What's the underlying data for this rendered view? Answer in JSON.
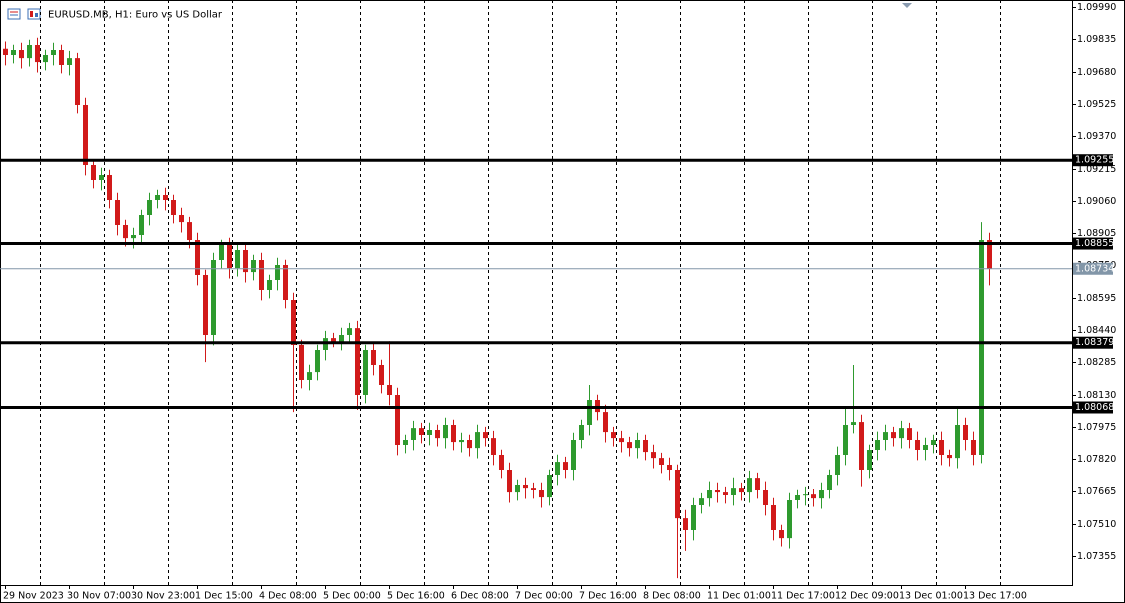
{
  "chart_data": {
    "type": "candlestick",
    "title": "EURUSD.MB, H1:  Euro vs US Dollar",
    "categories": [
      "29 Nov 2023",
      null,
      null,
      null,
      null,
      null,
      null,
      null,
      "30 Nov 07:00",
      null,
      null,
      null,
      null,
      null,
      null,
      null,
      "30 Nov 23:00",
      null,
      null,
      null,
      null,
      null,
      null,
      null,
      "1 Dec 15:00",
      null,
      null,
      null,
      null,
      null,
      null,
      null,
      "4 Dec 08:00",
      null,
      null,
      null,
      null,
      null,
      null,
      null,
      "5 Dec 00:00",
      null,
      null,
      null,
      null,
      null,
      null,
      null,
      "5 Dec 16:00",
      null,
      null,
      null,
      null,
      null,
      null,
      null,
      "6 Dec 08:00",
      null,
      null,
      null,
      null,
      null,
      null,
      null,
      "7 Dec 00:00",
      null,
      null,
      null,
      null,
      null,
      null,
      null,
      "7 Dec 16:00",
      null,
      null,
      null,
      null,
      null,
      null,
      null,
      "8 Dec 08:00",
      null,
      null,
      null,
      null,
      null,
      null,
      null,
      "11 Dec 01:00",
      null,
      null,
      null,
      null,
      null,
      null,
      null,
      "11 Dec 17:00",
      null,
      null,
      null,
      null,
      null,
      null,
      null,
      "12 Dec 09:00",
      null,
      null,
      null,
      null,
      null,
      null,
      null,
      "13 Dec 01:00",
      null,
      null,
      null,
      null,
      null,
      null,
      null,
      "13 Dec 17:00",
      null,
      null,
      null
    ],
    "open": [
      1.0979,
      1.0976,
      1.09784,
      1.09745,
      1.09808,
      1.09726,
      1.0976,
      1.09784,
      1.09712,
      1.09745,
      1.0952,
      1.09232,
      1.0916,
      1.09184,
      1.09064,
      1.08944,
      1.08881,
      1.08896,
      1.08992,
      1.09064,
      1.09088,
      1.09064,
      1.08992,
      1.08958,
      1.08872,
      1.08704,
      1.08416,
      1.08776,
      1.08848,
      1.08737,
      1.08824,
      1.08718,
      1.08776,
      1.08632,
      1.0868,
      1.08752,
      1.08584,
      1.08368,
      1.082,
      1.08238,
      1.08344,
      1.08401,
      1.08382,
      1.08416,
      1.08449,
      1.08128,
      1.08344,
      1.08272,
      1.08176,
      1.08128,
      1.07888,
      1.07912,
      1.07969,
      1.07936,
      1.0796,
      1.07921,
      1.07984,
      1.07902,
      1.07912,
      1.07873,
      1.0795,
      1.07921,
      1.0784,
      1.07768,
      1.07662,
      1.07696,
      1.07681,
      1.07672,
      1.07638,
      1.07744,
      1.07806,
      1.07768,
      1.07912,
      1.07984,
      1.08104,
      1.08046,
      1.0795,
      1.07921,
      1.07902,
      1.07873,
      1.07912,
      1.07854,
      1.07825,
      1.07792,
      1.07768,
      1.07537,
      1.0748,
      1.076,
      1.07633,
      1.07672,
      1.07662,
      1.07648,
      1.07681,
      1.07662,
      1.07729,
      1.07672,
      1.076,
      1.0748,
      1.07441,
      1.07624,
      1.07648,
      1.07652,
      1.07633,
      1.07672,
      1.07744,
      1.0784,
      1.07984,
      1.07998,
      1.07768,
      1.07864,
      1.07912,
      1.0795,
      1.07921,
      1.07969,
      1.07912,
      1.07864,
      1.07888,
      1.07912,
      1.0784,
      1.07825,
      1.07984,
      1.07912,
      1.0784,
      1.08872
    ],
    "high": [
      1.09825,
      1.09809,
      1.09819,
      1.09833,
      1.09843,
      1.09785,
      1.09819,
      1.09809,
      1.0978,
      1.0977,
      1.09555,
      1.09257,
      1.09219,
      1.09209,
      1.09099,
      1.08969,
      1.08931,
      1.09017,
      1.09099,
      1.09113,
      1.09123,
      1.09089,
      1.09027,
      1.08983,
      1.08907,
      1.08729,
      1.08811,
      1.08873,
      1.08883,
      1.08849,
      1.08859,
      1.08801,
      1.08811,
      1.08705,
      1.08787,
      1.08777,
      1.08619,
      1.08393,
      1.08273,
      1.08369,
      1.08436,
      1.08426,
      1.08451,
      1.08474,
      1.08484,
      1.08369,
      1.08379,
      1.08297,
      1.08386,
      1.08163,
      1.07937,
      1.08004,
      1.07994,
      1.07995,
      1.07985,
      1.08019,
      1.08009,
      1.07947,
      1.07937,
      1.07985,
      1.07975,
      1.07956,
      1.07865,
      1.07803,
      1.07721,
      1.07731,
      1.07706,
      1.07707,
      1.07769,
      1.07841,
      1.07831,
      1.07947,
      1.08009,
      1.08176,
      1.08129,
      1.08081,
      1.07975,
      1.07956,
      1.07927,
      1.07947,
      1.07937,
      1.07889,
      1.0785,
      1.07827,
      1.07793,
      1.07577,
      1.07635,
      1.07658,
      1.07712,
      1.07707,
      1.07687,
      1.07731,
      1.07706,
      1.07764,
      1.07754,
      1.07712,
      1.07635,
      1.07505,
      1.07659,
      1.07673,
      1.07687,
      1.07677,
      1.07707,
      1.07769,
      1.0788,
      1.08069,
      1.08272,
      1.08033,
      1.07889,
      1.07952,
      1.07985,
      1.07975,
      1.08004,
      1.07994,
      1.07952,
      1.07923,
      1.07937,
      1.07952,
      1.07865,
      1.08068,
      1.08019,
      1.07952,
      1.08958,
      1.08907
    ],
    "low": [
      1.0971,
      1.0972,
      1.09695,
      1.09705,
      1.09676,
      1.09686,
      1.0971,
      1.09672,
      1.09662,
      1.0948,
      1.09182,
      1.0912,
      1.0911,
      1.09024,
      1.08894,
      1.08841,
      1.08831,
      1.08856,
      1.08942,
      1.09024,
      1.09014,
      1.08952,
      1.08908,
      1.08832,
      1.08654,
      1.08286,
      1.08366,
      1.08736,
      1.08687,
      1.08697,
      1.08668,
      1.08678,
      1.08582,
      1.08592,
      1.0863,
      1.08544,
      1.08046,
      1.0816,
      1.0815,
      1.08198,
      1.08294,
      1.08357,
      1.08342,
      1.08376,
      1.08056,
      1.08088,
      1.08222,
      1.08136,
      1.08078,
      1.07838,
      1.07848,
      1.07862,
      1.07896,
      1.07886,
      1.07881,
      1.07871,
      1.07862,
      1.07852,
      1.07833,
      1.07823,
      1.07881,
      1.0779,
      1.07728,
      1.07612,
      1.07622,
      1.07631,
      1.07632,
      1.07588,
      1.07598,
      1.07694,
      1.07728,
      1.07718,
      1.07872,
      1.07934,
      1.08006,
      1.079,
      1.07881,
      1.07852,
      1.07833,
      1.07823,
      1.07814,
      1.07775,
      1.07752,
      1.07718,
      1.07249,
      1.0738,
      1.0743,
      1.0756,
      1.07593,
      1.07612,
      1.07608,
      1.07598,
      1.07622,
      1.07612,
      1.07632,
      1.0755,
      1.0743,
      1.07401,
      1.07391,
      1.07584,
      1.07598,
      1.07593,
      1.07583,
      1.07632,
      1.07694,
      1.0779,
      1.07944,
      1.07688,
      1.07728,
      1.07814,
      1.07862,
      1.07881,
      1.07871,
      1.07872,
      1.07814,
      1.07814,
      1.07848,
      1.0779,
      1.07785,
      1.07775,
      1.07862,
      1.0779,
      1.078,
      1.08654
    ],
    "close": [
      1.0976,
      1.09784,
      1.09745,
      1.09808,
      1.09726,
      1.0976,
      1.09784,
      1.09712,
      1.09745,
      1.0952,
      1.09232,
      1.0916,
      1.09184,
      1.09064,
      1.08944,
      1.08881,
      1.08896,
      1.08992,
      1.09064,
      1.09088,
      1.09064,
      1.08992,
      1.08958,
      1.08872,
      1.08704,
      1.08416,
      1.08776,
      1.08848,
      1.08737,
      1.08824,
      1.08718,
      1.08776,
      1.08632,
      1.0868,
      1.08752,
      1.08584,
      1.08368,
      1.082,
      1.08238,
      1.08344,
      1.08401,
      1.08382,
      1.08416,
      1.08449,
      1.08128,
      1.08344,
      1.08272,
      1.08176,
      1.08128,
      1.07888,
      1.07912,
      1.07969,
      1.07936,
      1.0796,
      1.07921,
      1.07984,
      1.07902,
      1.07912,
      1.07873,
      1.0795,
      1.07921,
      1.0784,
      1.07768,
      1.07662,
      1.07696,
      1.07681,
      1.07672,
      1.07638,
      1.07744,
      1.07806,
      1.07768,
      1.07912,
      1.07984,
      1.08104,
      1.08046,
      1.0795,
      1.07921,
      1.07902,
      1.07873,
      1.07912,
      1.07854,
      1.07825,
      1.07792,
      1.07768,
      1.07537,
      1.0748,
      1.076,
      1.07633,
      1.07672,
      1.07662,
      1.07648,
      1.07681,
      1.07662,
      1.07729,
      1.07672,
      1.076,
      1.0748,
      1.07441,
      1.07624,
      1.07648,
      1.07652,
      1.07633,
      1.07672,
      1.07744,
      1.0784,
      1.07984,
      1.07998,
      1.07768,
      1.07864,
      1.07912,
      1.0795,
      1.07921,
      1.07969,
      1.07912,
      1.07864,
      1.07888,
      1.07912,
      1.0784,
      1.07825,
      1.07984,
      1.07912,
      1.0784,
      1.08872,
      1.08734
    ],
    "up_color": "#2e9a2e",
    "down_color": "#d11a1a",
    "ylim": [
      1.07216,
      1.10024
    ],
    "yticks": [
      {
        "value": 1.0999,
        "label": "1.09990"
      },
      1.09835,
      {
        "value": 1.0968,
        "label": "1.09680"
      },
      1.09525,
      {
        "value": 1.0937,
        "label": "1.09370"
      },
      1.09215,
      {
        "value": 1.0906,
        "label": "1.09060"
      },
      1.08905,
      {
        "value": 1.0875,
        "label": "1.08750"
      },
      1.08595,
      {
        "value": 1.0844,
        "label": "1.08440"
      },
      1.08285,
      {
        "value": 1.0813,
        "label": "1.08130"
      },
      1.07975,
      {
        "value": 1.0782,
        "label": "1.07820"
      },
      1.07665,
      {
        "value": 1.0751,
        "label": "1.07510"
      },
      1.07355
    ],
    "levels": [
      1.09255,
      1.08855,
      1.08379,
      1.08068
    ],
    "price": 1.08734,
    "grid": true
  }
}
